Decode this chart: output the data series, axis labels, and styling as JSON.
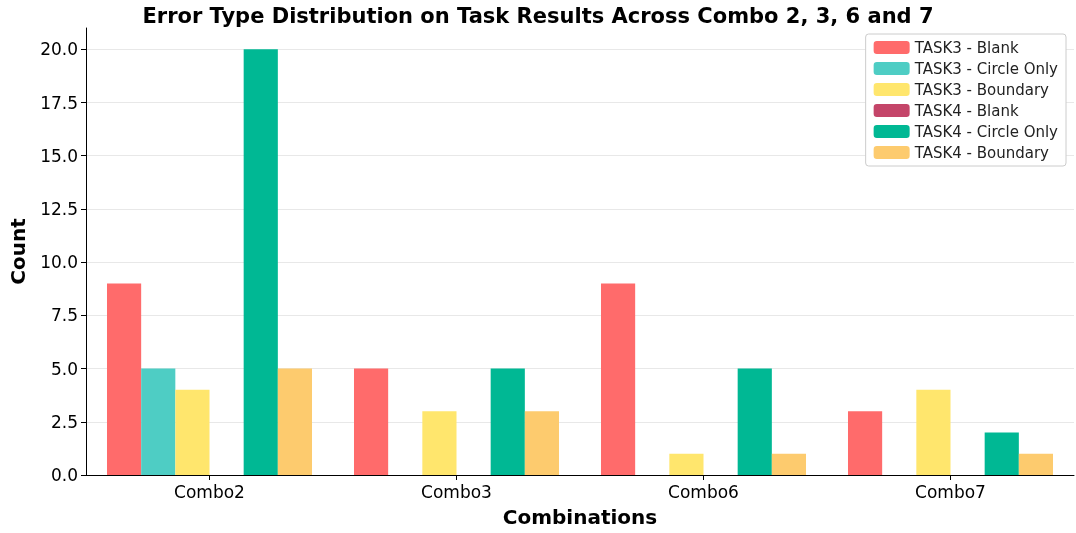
{
  "chart_data": {
    "type": "bar",
    "title": "Error Type Distribution on Task Results Across Combo 2, 3, 6 and 7",
    "xlabel": "Combinations",
    "ylabel": "Count",
    "categories": [
      "Combo2",
      "Combo3",
      "Combo6",
      "Combo7"
    ],
    "series": [
      {
        "name": "TASK3 - Blank",
        "color": "#ff6b6b",
        "values": [
          9,
          5,
          9,
          3
        ]
      },
      {
        "name": "TASK3 - Circle Only",
        "color": "#4ecdc4",
        "values": [
          5,
          0,
          0,
          0
        ]
      },
      {
        "name": "TASK3 - Boundary",
        "color": "#ffe66d",
        "values": [
          4,
          3,
          1,
          4
        ]
      },
      {
        "name": "TASK4 - Blank",
        "color": "#c44569",
        "values": [
          0,
          0,
          0,
          0
        ]
      },
      {
        "name": "TASK4 - Circle Only",
        "color": "#00b894",
        "values": [
          20,
          5,
          5,
          2
        ]
      },
      {
        "name": "TASK4 - Boundary",
        "color": "#fdcb6e",
        "values": [
          5,
          3,
          1,
          1
        ]
      }
    ],
    "ylim": [
      0,
      21
    ],
    "yticks": [
      {
        "value": 0,
        "label": "0.0"
      },
      {
        "value": 2.5,
        "label": "2.5"
      },
      {
        "value": 5,
        "label": "5.0"
      },
      {
        "value": 7.5,
        "label": "7.5"
      },
      {
        "value": 10,
        "label": "10.0"
      },
      {
        "value": 12.5,
        "label": "12.5"
      },
      {
        "value": 15,
        "label": "15.0"
      },
      {
        "value": 17.5,
        "label": "17.5"
      },
      {
        "value": 20,
        "label": "20.0"
      }
    ],
    "grid": "y",
    "legend": "top right"
  }
}
